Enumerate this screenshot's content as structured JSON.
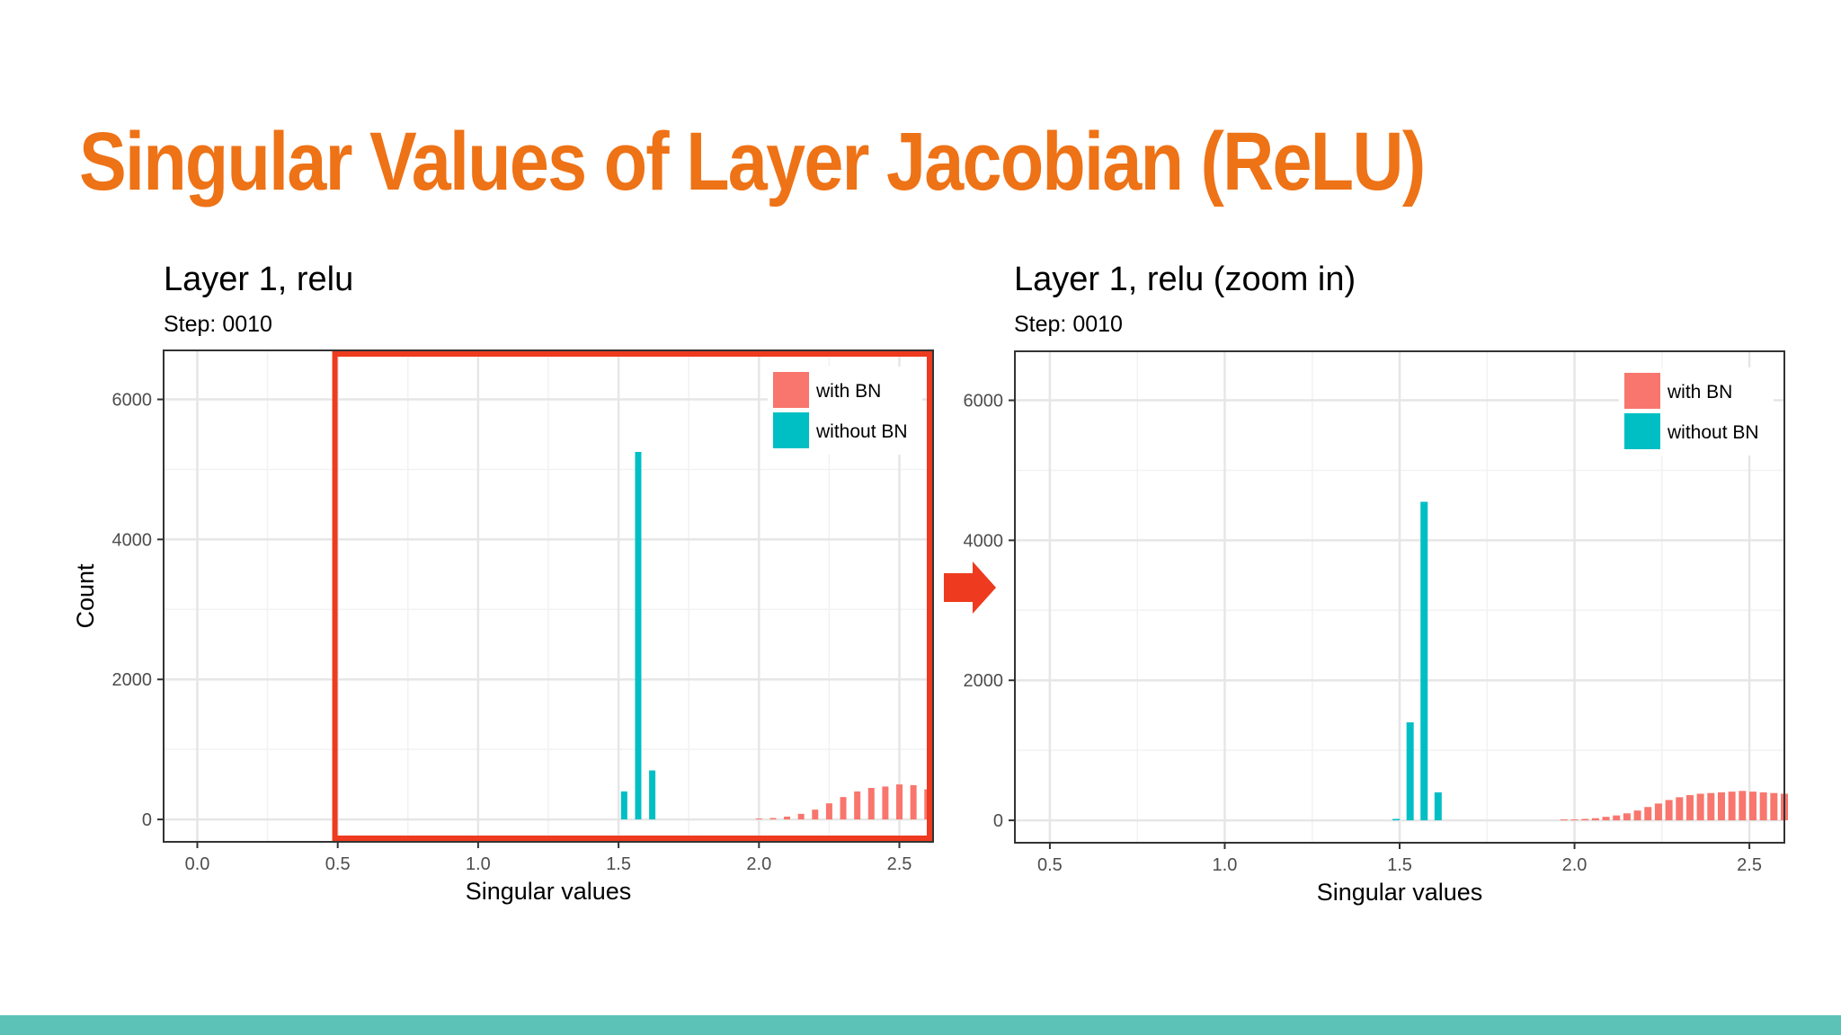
{
  "slide": {
    "title": "Singular Values of Layer Jacobian (ReLU)",
    "accent_color": "#ee7216",
    "footer_color": "#5cc2b8",
    "highlight_color": "#ee3a1e",
    "arrow_icon": "right-arrow-icon"
  },
  "chart_data": [
    {
      "type": "bar",
      "title": "Layer 1, relu",
      "subtitle": "Step: 0010",
      "xlabel": "Singular values",
      "ylabel": "Count",
      "xlim": [
        -0.12,
        2.62
      ],
      "ylim": [
        -320,
        6700
      ],
      "x_ticks": [
        0.0,
        0.5,
        1.0,
        1.5,
        2.0,
        2.5
      ],
      "x_tick_labels": [
        "0.0",
        "0.5",
        "1.0",
        "1.5",
        "2.0",
        "2.5"
      ],
      "y_ticks": [
        0,
        2000,
        4000,
        6000
      ],
      "y_tick_labels": [
        "0",
        "2000",
        "4000",
        "6000"
      ],
      "grid": true,
      "legend_position": "top-right",
      "highlight_range": [
        0.49,
        2.62
      ],
      "series": [
        {
          "name": "with BN",
          "color": "#f8766d",
          "x": [
            2.0,
            2.05,
            2.1,
            2.15,
            2.2,
            2.25,
            2.3,
            2.35,
            2.4,
            2.45,
            2.5,
            2.55,
            2.6
          ],
          "values": [
            10,
            20,
            40,
            80,
            140,
            230,
            320,
            400,
            450,
            470,
            500,
            490,
            430
          ]
        },
        {
          "name": "without BN",
          "color": "#00bfc4",
          "x": [
            1.52,
            1.57,
            1.62
          ],
          "values": [
            400,
            5250,
            700
          ]
        }
      ]
    },
    {
      "type": "bar",
      "title": "Layer 1, relu (zoom in)",
      "subtitle": "Step: 0010",
      "xlabel": "Singular values",
      "ylabel": "",
      "xlim": [
        0.4,
        2.6
      ],
      "ylim": [
        -320,
        6700
      ],
      "x_ticks": [
        0.5,
        1.0,
        1.5,
        2.0,
        2.5
      ],
      "x_tick_labels": [
        "0.5",
        "1.0",
        "1.5",
        "2.0",
        "2.5"
      ],
      "y_ticks": [
        0,
        2000,
        4000,
        6000
      ],
      "y_tick_labels": [
        "0",
        "2000",
        "4000",
        "6000"
      ],
      "grid": true,
      "legend_position": "top-right",
      "series": [
        {
          "name": "with BN",
          "color": "#f8766d",
          "x": [
            1.97,
            2.0,
            2.03,
            2.06,
            2.09,
            2.12,
            2.15,
            2.18,
            2.21,
            2.24,
            2.27,
            2.3,
            2.33,
            2.36,
            2.39,
            2.42,
            2.45,
            2.48,
            2.51,
            2.54,
            2.57,
            2.6
          ],
          "values": [
            5,
            10,
            20,
            30,
            50,
            70,
            100,
            140,
            190,
            240,
            290,
            330,
            360,
            380,
            390,
            400,
            410,
            420,
            410,
            400,
            390,
            380
          ]
        },
        {
          "name": "without BN",
          "color": "#00bfc4",
          "x": [
            1.49,
            1.53,
            1.57,
            1.61
          ],
          "values": [
            20,
            1400,
            4550,
            400
          ]
        }
      ]
    }
  ]
}
